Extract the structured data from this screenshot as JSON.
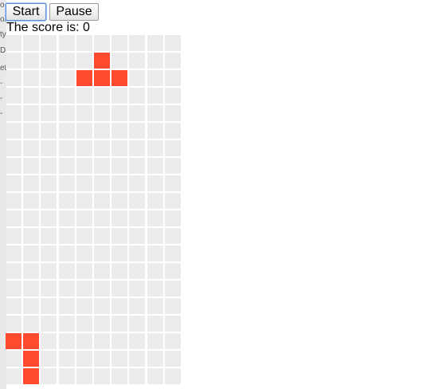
{
  "sidebar_fragments": [
    "o",
    "oi",
    "ty",
    "D",
    "et",
    "-",
    "-",
    "-"
  ],
  "controls": {
    "start_label": "Start",
    "pause_label": "Pause"
  },
  "score": {
    "label": "The score is: ",
    "value": "0"
  },
  "board": {
    "columns": 10,
    "rows": 20,
    "empty_color": "#ebebeb",
    "block_color": "#ff4a2f",
    "falling_piece": {
      "shape": "T",
      "cells": [
        [
          1,
          5
        ],
        [
          2,
          4
        ],
        [
          2,
          5
        ],
        [
          2,
          6
        ]
      ]
    },
    "landed_cells": [
      [
        17,
        0
      ],
      [
        17,
        1
      ],
      [
        18,
        1
      ],
      [
        19,
        1
      ]
    ]
  }
}
